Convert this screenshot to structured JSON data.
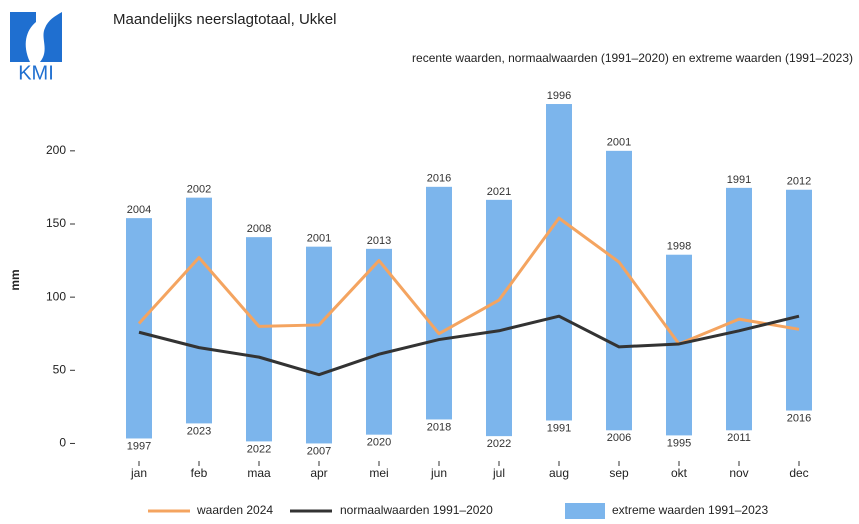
{
  "logo_text": "KMI",
  "chart_data": {
    "type": "range_bar_line",
    "title": "Maandelijks neerslagtotaal, Ukkel",
    "subtitle": "recente waarden, normaalwaarden (1991–2020) en extreme waarden (1991–2023)",
    "y_label": "mm",
    "categories": [
      "jan",
      "feb",
      "maa",
      "apr",
      "mei",
      "jun",
      "jul",
      "aug",
      "sep",
      "okt",
      "nov",
      "dec"
    ],
    "ylim": [
      -12,
      245
    ],
    "yticks": [
      0,
      50,
      100,
      150,
      200
    ],
    "range_series": {
      "name": "extreme waarden 1991–2023",
      "color": "#7cb5ec",
      "low": [
        3.4,
        13.7,
        1.4,
        0,
        6,
        16.4,
        5,
        15.7,
        9,
        5.5,
        9,
        22.5
      ],
      "high": [
        154,
        168,
        141,
        134.5,
        133,
        175.4,
        166.5,
        232,
        200,
        129,
        174.7,
        173.4
      ],
      "low_labels": [
        "1997",
        "2023",
        "2022",
        "2007",
        "2020",
        "2018",
        "2022",
        "1991",
        "2006",
        "1995",
        "2011",
        "2016"
      ],
      "high_labels": [
        "2004",
        "2002",
        "2008",
        "2001",
        "2013",
        "2016",
        "2021",
        "1996",
        "2001",
        "1998",
        "1991",
        "2012"
      ]
    },
    "series": [
      {
        "name": "waarden 2024",
        "color": "#f4a460",
        "values": [
          82,
          127,
          80,
          81,
          125,
          75,
          98,
          154,
          124,
          68,
          85,
          78
        ]
      },
      {
        "name": "normaalwaarden 1991–2020",
        "color": "#333333",
        "values": [
          76,
          65.5,
          59,
          47,
          61,
          71,
          77,
          87,
          66,
          68,
          77,
          87
        ]
      }
    ]
  }
}
